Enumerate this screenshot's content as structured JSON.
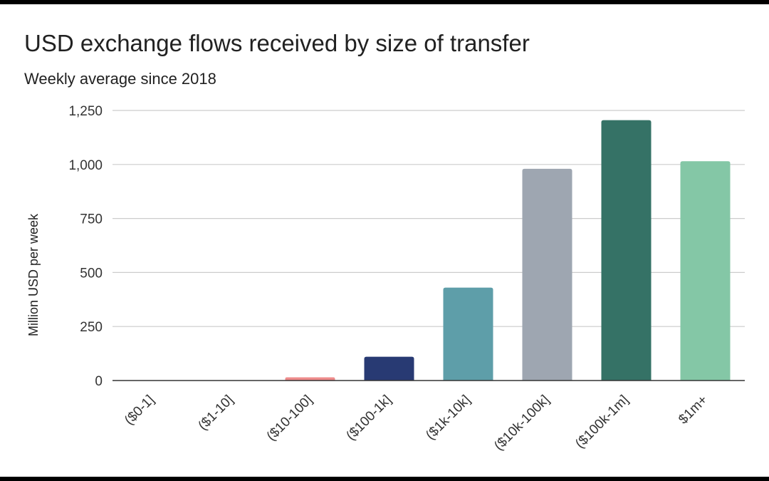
{
  "chart_data": {
    "type": "bar",
    "title": "USD exchange flows received by size of transfer",
    "subtitle": "Weekly average since 2018",
    "ylabel": "Million USD per week",
    "xlabel": "",
    "ylim": [
      0,
      1250
    ],
    "yticks": [
      "0",
      "250",
      "500",
      "750",
      "1,000",
      "1,250"
    ],
    "ytick_values": [
      0,
      250,
      500,
      750,
      1000,
      1250
    ],
    "grid": true,
    "legend": "none",
    "categories": [
      "($0-1]",
      "($1-10]",
      "($10-100]",
      "($100-1k]",
      "($1k-10k]",
      "($10k-100k]",
      "($100k-1m]",
      "$1m+"
    ],
    "values": [
      0,
      0,
      15,
      110,
      430,
      980,
      1205,
      1015
    ],
    "colors": [
      "#e57373",
      "#e57373",
      "#ee8b8b",
      "#283a73",
      "#5e9ea9",
      "#9ea6b1",
      "#357266",
      "#84c7a6"
    ]
  }
}
